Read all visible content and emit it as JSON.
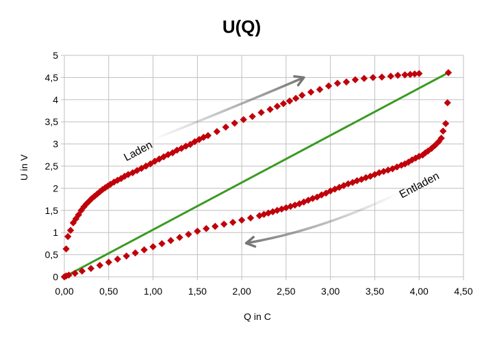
{
  "chart_data": {
    "type": "scatter",
    "title": "U(Q)",
    "xlabel": "Q in C",
    "ylabel": "U in V",
    "xlim": [
      0,
      4.5
    ],
    "ylim": [
      0,
      5
    ],
    "x_ticks": [
      "0,00",
      "0,50",
      "1,00",
      "1,50",
      "2,00",
      "2,50",
      "3,00",
      "3,50",
      "4,00",
      "4,50"
    ],
    "y_ticks": [
      "0",
      "0,5",
      "1",
      "1,5",
      "2",
      "2,5",
      "3",
      "3,5",
      "4",
      "4,5",
      "5"
    ],
    "grid": true,
    "legend": "none",
    "colors": {
      "marker": "#c0000a",
      "line": "#3a9a22",
      "grid": "#bfbfbf",
      "arrow": "#777777"
    },
    "series": [
      {
        "marker": "diamond",
        "points": [
          [
            0.0,
            0.0
          ],
          [
            0.02,
            0.63
          ],
          [
            0.04,
            0.91
          ],
          [
            0.07,
            1.05
          ],
          [
            0.1,
            1.22
          ],
          [
            0.13,
            1.31
          ],
          [
            0.16,
            1.4
          ],
          [
            0.19,
            1.5
          ],
          [
            0.22,
            1.58
          ],
          [
            0.25,
            1.65
          ],
          [
            0.28,
            1.71
          ],
          [
            0.31,
            1.77
          ],
          [
            0.34,
            1.82
          ],
          [
            0.37,
            1.87
          ],
          [
            0.4,
            1.92
          ],
          [
            0.43,
            1.97
          ],
          [
            0.46,
            2.01
          ],
          [
            0.49,
            2.05
          ],
          [
            0.52,
            2.09
          ],
          [
            0.56,
            2.14
          ],
          [
            0.6,
            2.18
          ],
          [
            0.64,
            2.22
          ],
          [
            0.68,
            2.27
          ],
          [
            0.72,
            2.31
          ],
          [
            0.77,
            2.35
          ],
          [
            0.82,
            2.4
          ],
          [
            0.87,
            2.45
          ],
          [
            0.92,
            2.5
          ],
          [
            0.97,
            2.55
          ],
          [
            1.02,
            2.61
          ],
          [
            1.07,
            2.66
          ],
          [
            1.12,
            2.71
          ],
          [
            1.17,
            2.76
          ],
          [
            1.22,
            2.8
          ],
          [
            1.27,
            2.86
          ],
          [
            1.32,
            2.9
          ],
          [
            1.37,
            2.95
          ],
          [
            1.42,
            2.99
          ],
          [
            1.47,
            3.05
          ],
          [
            1.52,
            3.1
          ],
          [
            1.57,
            3.15
          ],
          [
            1.62,
            3.19
          ],
          [
            1.72,
            3.28
          ],
          [
            1.82,
            3.38
          ],
          [
            1.92,
            3.47
          ],
          [
            2.02,
            3.55
          ],
          [
            2.12,
            3.62
          ],
          [
            2.22,
            3.71
          ],
          [
            2.32,
            3.78
          ],
          [
            2.4,
            3.85
          ],
          [
            2.47,
            3.91
          ],
          [
            2.54,
            3.97
          ],
          [
            2.61,
            4.03
          ],
          [
            2.68,
            4.1
          ],
          [
            2.78,
            4.17
          ],
          [
            2.88,
            4.23
          ],
          [
            2.98,
            4.31
          ],
          [
            3.08,
            4.37
          ],
          [
            3.18,
            4.4
          ],
          [
            3.28,
            4.45
          ],
          [
            3.38,
            4.48
          ],
          [
            3.48,
            4.5
          ],
          [
            3.58,
            4.51
          ],
          [
            3.68,
            4.53
          ],
          [
            3.76,
            4.55
          ],
          [
            3.84,
            4.56
          ],
          [
            3.9,
            4.57
          ],
          [
            3.95,
            4.58
          ],
          [
            4.0,
            4.59
          ]
        ]
      },
      {
        "marker": "diamond",
        "points": [
          [
            4.33,
            4.61
          ],
          [
            4.32,
            3.93
          ],
          [
            4.3,
            3.46
          ],
          [
            4.27,
            3.29
          ],
          [
            4.25,
            3.13
          ],
          [
            4.22,
            3.05
          ],
          [
            4.18,
            2.97
          ],
          [
            4.14,
            2.9
          ],
          [
            4.1,
            2.84
          ],
          [
            4.07,
            2.8
          ],
          [
            4.04,
            2.75
          ],
          [
            4.0,
            2.72
          ],
          [
            3.96,
            2.68
          ],
          [
            3.92,
            2.64
          ],
          [
            3.88,
            2.59
          ],
          [
            3.84,
            2.55
          ],
          [
            3.8,
            2.52
          ],
          [
            3.75,
            2.48
          ],
          [
            3.7,
            2.44
          ],
          [
            3.65,
            2.41
          ],
          [
            3.6,
            2.38
          ],
          [
            3.55,
            2.35
          ],
          [
            3.5,
            2.31
          ],
          [
            3.45,
            2.27
          ],
          [
            3.4,
            2.24
          ],
          [
            3.35,
            2.2
          ],
          [
            3.3,
            2.17
          ],
          [
            3.25,
            2.13
          ],
          [
            3.2,
            2.1
          ],
          [
            3.15,
            2.06
          ],
          [
            3.1,
            2.02
          ],
          [
            3.05,
            1.98
          ],
          [
            3.0,
            1.94
          ],
          [
            2.95,
            1.89
          ],
          [
            2.9,
            1.85
          ],
          [
            2.85,
            1.8
          ],
          [
            2.8,
            1.77
          ],
          [
            2.75,
            1.73
          ],
          [
            2.7,
            1.69
          ],
          [
            2.65,
            1.65
          ],
          [
            2.6,
            1.62
          ],
          [
            2.55,
            1.59
          ],
          [
            2.5,
            1.56
          ],
          [
            2.45,
            1.53
          ],
          [
            2.4,
            1.5
          ],
          [
            2.35,
            1.47
          ],
          [
            2.3,
            1.44
          ],
          [
            2.25,
            1.41
          ],
          [
            2.2,
            1.38
          ],
          [
            2.1,
            1.33
          ],
          [
            2.0,
            1.28
          ],
          [
            1.9,
            1.23
          ],
          [
            1.8,
            1.19
          ],
          [
            1.7,
            1.14
          ],
          [
            1.6,
            1.09
          ],
          [
            1.5,
            1.03
          ],
          [
            1.4,
            0.96
          ],
          [
            1.3,
            0.89
          ],
          [
            1.2,
            0.82
          ],
          [
            1.1,
            0.75
          ],
          [
            1.0,
            0.68
          ],
          [
            0.9,
            0.61
          ],
          [
            0.8,
            0.54
          ],
          [
            0.7,
            0.47
          ],
          [
            0.6,
            0.4
          ],
          [
            0.5,
            0.33
          ],
          [
            0.4,
            0.26
          ],
          [
            0.3,
            0.19
          ],
          [
            0.2,
            0.13
          ],
          [
            0.12,
            0.08
          ],
          [
            0.05,
            0.04
          ],
          [
            0.02,
            0.02
          ]
        ]
      },
      {
        "type": "line",
        "points": [
          [
            0.0,
            0.0
          ],
          [
            4.33,
            4.61
          ]
        ]
      }
    ],
    "annotations": [
      {
        "text": "Laden",
        "x": 0.85,
        "y": 2.77,
        "rotate": -28
      },
      {
        "text": "Entladen",
        "x": 4.02,
        "y": 2.0,
        "rotate": -28
      }
    ],
    "arrows": [
      {
        "from": [
          1.0,
          3.1
        ],
        "ctrl": [
          2.0,
          3.9
        ],
        "to": [
          2.7,
          4.5
        ]
      },
      {
        "from": [
          3.78,
          1.9
        ],
        "ctrl": [
          2.9,
          1.05
        ],
        "to": [
          2.05,
          0.76
        ]
      }
    ]
  }
}
